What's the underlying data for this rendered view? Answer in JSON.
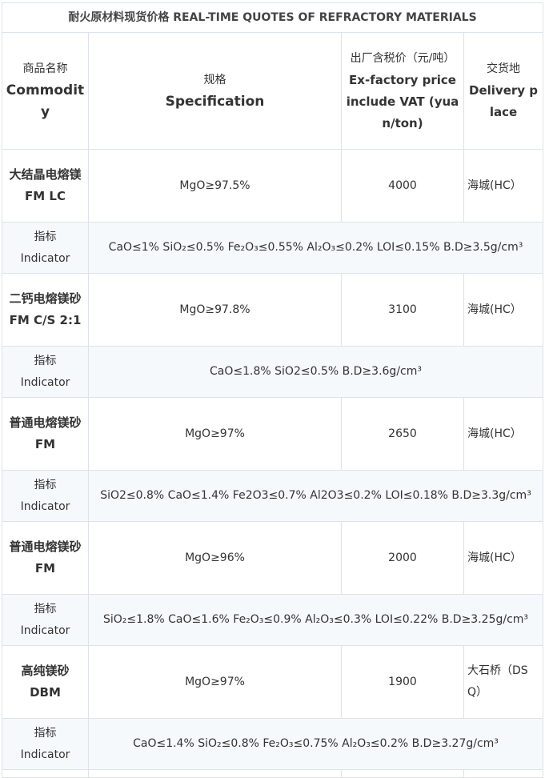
{
  "title": "耐火原材料现货价格 REAL-TIME QUOTES OF REFRACTORY MATERIALS",
  "headers": {
    "commodity_cn": "商品名称",
    "commodity_en": "Commodity",
    "spec_cn": "规格",
    "spec_en": "Specification",
    "price_cn": "出厂含税价（元/吨）",
    "price_en": "Ex-factory price include VAT (yuan/ton)",
    "delivery_cn": "交货地",
    "delivery_en": "Delivery place"
  },
  "indicator_cn": "指标",
  "indicator_en": "Indicator",
  "rows": [
    {
      "name_cn": "大结晶电熔镁",
      "name_en": "FM LC",
      "spec": "MgO≥97.5%",
      "price": "4000",
      "place": "海城(HC）",
      "indicator": "CaO≤1% SiO₂≤0.5% Fe₂O₃≤0.55% Al₂O₃≤0.2% LOI≤0.15% B.D≥3.5g/cm³"
    },
    {
      "name_cn": "二钙电熔镁砂",
      "name_en": "FM C/S 2:1",
      "spec": "MgO≥97.8%",
      "price": "3100",
      "place": "海城(HC）",
      "indicator": "CaO≤1.8% SiO2≤0.5% B.D≥3.6g/cm³"
    },
    {
      "name_cn": "普通电熔镁砂",
      "name_en": "FM",
      "spec": "MgO≥97%",
      "price": "2650",
      "place": "海城(HC）",
      "indicator": "SiO2≤0.8% CaO≤1.4% Fe2O3≤0.7% Al2O3≤0.2% LOI≤0.18% B.D≥3.3g/cm³"
    },
    {
      "name_cn": "普通电熔镁砂",
      "name_en": "FM",
      "spec": "MgO≥96%",
      "price": "2000",
      "place": "海城(HC）",
      "indicator": "SiO₂≤1.8% CaO≤1.6% Fe₂O₃≤0.9% Al₂O₃≤0.3% LOI≤0.22% B.D≥3.25g/cm³"
    },
    {
      "name_cn": "高纯镁砂",
      "name_en": "DBM",
      "spec": "MgO≥97%",
      "price": "1900",
      "place": "大石桥（DSQ）",
      "indicator": "CaO≤1.4% SiO₂≤0.8% Fe₂O₃≤0.75% Al₂O₃≤0.2% B.D≥3.27g/cm³"
    }
  ]
}
